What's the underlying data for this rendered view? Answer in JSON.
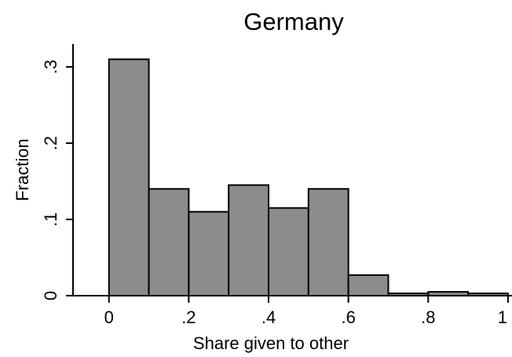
{
  "chart_data": {
    "type": "bar",
    "title": "Germany",
    "xlabel": "Share given to other",
    "ylabel": "Fraction",
    "bin_edges": [
      0,
      0.1,
      0.2,
      0.3,
      0.4,
      0.5,
      0.6,
      0.7,
      0.8,
      0.9,
      1.0
    ],
    "values": [
      0.31,
      0.14,
      0.11,
      0.145,
      0.115,
      0.14,
      0.027,
      0.003,
      0.005,
      0.003
    ],
    "xlim": [
      -0.09,
      1.01
    ],
    "ylim": [
      0,
      0.33
    ],
    "x_ticks": [
      {
        "value": 0,
        "label": "0"
      },
      {
        "value": 0.2,
        "label": ".2"
      },
      {
        "value": 0.4,
        "label": ".4"
      },
      {
        "value": 0.6,
        "label": ".6"
      },
      {
        "value": 0.8,
        "label": ".8"
      },
      {
        "value": 1.0,
        "label": "1"
      }
    ],
    "y_ticks": [
      {
        "value": 0,
        "label": "0"
      },
      {
        "value": 0.1,
        "label": ".1"
      },
      {
        "value": 0.2,
        "label": ".2"
      },
      {
        "value": 0.3,
        "label": ".3"
      }
    ],
    "grid": false,
    "legend": "none",
    "colors": {
      "bar_fill": "#8c8c8c",
      "bar_edge": "#000000"
    }
  }
}
